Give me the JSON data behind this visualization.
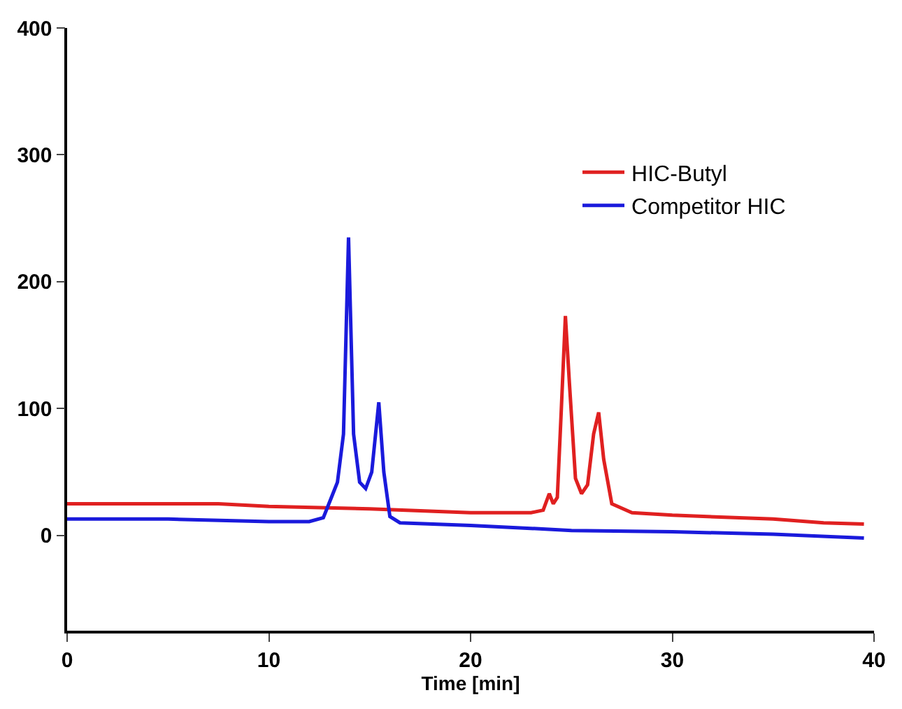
{
  "chart_data": {
    "type": "line",
    "xlabel": "Time [min]",
    "xlim": [
      0,
      40
    ],
    "xticks": [
      0,
      10,
      20,
      30,
      40
    ],
    "ylim": [
      -75,
      400
    ],
    "yticks": [
      0,
      100,
      200,
      300,
      400
    ],
    "legend": "top right",
    "marker": "none",
    "line_style": "solid",
    "series": [
      {
        "name": "HIC-Butyl",
        "color": "#e02020",
        "x": [
          0,
          7.5,
          10,
          15,
          20,
          23,
          23.6,
          23.9,
          24.1,
          24.3,
          24.5,
          24.7,
          24.9,
          25.2,
          25.5,
          25.8,
          26.1,
          26.35,
          26.6,
          27,
          28,
          30,
          35,
          37.5,
          39.5
        ],
        "values": [
          25,
          25,
          23,
          21,
          18,
          18,
          20,
          33,
          25,
          30,
          100,
          173,
          120,
          45,
          33,
          40,
          80,
          97,
          60,
          25,
          18,
          16,
          13,
          10,
          9
        ]
      },
      {
        "name": "Competitor HIC",
        "color": "#1a1adc",
        "x": [
          0,
          5,
          10,
          12,
          12.7,
          13.1,
          13.4,
          13.7,
          13.95,
          14.2,
          14.5,
          14.8,
          15.1,
          15.45,
          15.7,
          16.0,
          16.5,
          20,
          25,
          30,
          35,
          39.5
        ],
        "values": [
          13,
          13,
          11,
          11,
          14,
          30,
          42,
          80,
          235,
          80,
          42,
          37,
          50,
          105,
          50,
          15,
          10,
          8,
          4,
          3,
          1,
          -2
        ]
      }
    ]
  }
}
